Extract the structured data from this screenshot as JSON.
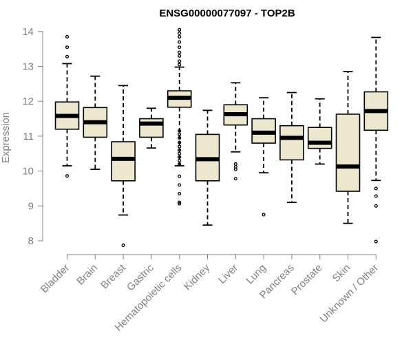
{
  "chart_data": {
    "type": "boxplot",
    "title": "ENSG00000077097 - TOP2B",
    "xlabel": "",
    "ylabel": "Expression",
    "ylim": [
      7.7,
      14.2
    ],
    "yticks": [
      8,
      9,
      10,
      11,
      12,
      13,
      14
    ],
    "categories": [
      "Bladder",
      "Brain",
      "Breast",
      "Gastric",
      "Hematopoietic cells",
      "Kidney",
      "Liver",
      "Lung",
      "Pancreas",
      "Prostate",
      "Skin",
      "Unknown / Other"
    ],
    "boxes": [
      {
        "name": "Bladder",
        "whisker_low": 10.15,
        "q1": 11.2,
        "median": 11.58,
        "q3": 11.98,
        "whisker_high": 13.08,
        "outliers": [
          9.86,
          13.28,
          13.55,
          13.85
        ]
      },
      {
        "name": "Brain",
        "whisker_low": 10.05,
        "q1": 10.97,
        "median": 11.4,
        "q3": 11.82,
        "whisker_high": 12.72,
        "outliers": []
      },
      {
        "name": "Breast",
        "whisker_low": 8.74,
        "q1": 9.72,
        "median": 10.35,
        "q3": 10.84,
        "whisker_high": 12.45,
        "outliers": [
          7.87
        ]
      },
      {
        "name": "Gastric",
        "whisker_low": 10.66,
        "q1": 10.97,
        "median": 11.36,
        "q3": 11.5,
        "whisker_high": 11.8,
        "outliers": []
      },
      {
        "name": "Hematopoietic cells",
        "whisker_low": 10.15,
        "q1": 11.83,
        "median": 12.1,
        "q3": 12.3,
        "whisker_high": 12.98,
        "outliers": [
          9.06,
          9.1,
          9.35,
          9.6,
          9.85,
          10.2,
          10.3,
          10.4,
          10.5,
          10.6,
          10.7,
          10.82,
          10.95,
          11.05,
          11.15,
          13.05,
          13.15,
          13.3,
          13.4,
          13.55,
          13.7,
          13.85,
          13.95,
          14.05
        ]
      },
      {
        "name": "Kidney",
        "whisker_low": 8.45,
        "q1": 9.72,
        "median": 10.34,
        "q3": 11.05,
        "whisker_high": 11.74,
        "outliers": []
      },
      {
        "name": "Liver",
        "whisker_low": 10.55,
        "q1": 11.32,
        "median": 11.63,
        "q3": 11.9,
        "whisker_high": 12.53,
        "outliers": [
          9.78,
          10.05,
          10.12,
          10.2
        ]
      },
      {
        "name": "Lung",
        "whisker_low": 9.95,
        "q1": 10.8,
        "median": 11.1,
        "q3": 11.5,
        "whisker_high": 12.1,
        "outliers": [
          8.75
        ]
      },
      {
        "name": "Pancreas",
        "whisker_low": 9.1,
        "q1": 10.32,
        "median": 10.95,
        "q3": 11.3,
        "whisker_high": 12.25,
        "outliers": []
      },
      {
        "name": "Prostate",
        "whisker_low": 10.2,
        "q1": 10.65,
        "median": 10.81,
        "q3": 11.25,
        "whisker_high": 12.07,
        "outliers": []
      },
      {
        "name": "Skin",
        "whisker_low": 8.5,
        "q1": 9.42,
        "median": 10.13,
        "q3": 11.63,
        "whisker_high": 12.85,
        "outliers": []
      },
      {
        "name": "Unknown / Other",
        "whisker_low": 9.73,
        "q1": 11.17,
        "median": 11.72,
        "q3": 12.27,
        "whisker_high": 13.83,
        "outliers": [
          7.98,
          9.0,
          9.28,
          9.5
        ]
      }
    ],
    "colors": {
      "box_fill": "#ede7d0",
      "stroke": "#000000",
      "axis": "#808080"
    },
    "grid": false,
    "legend": "none"
  }
}
